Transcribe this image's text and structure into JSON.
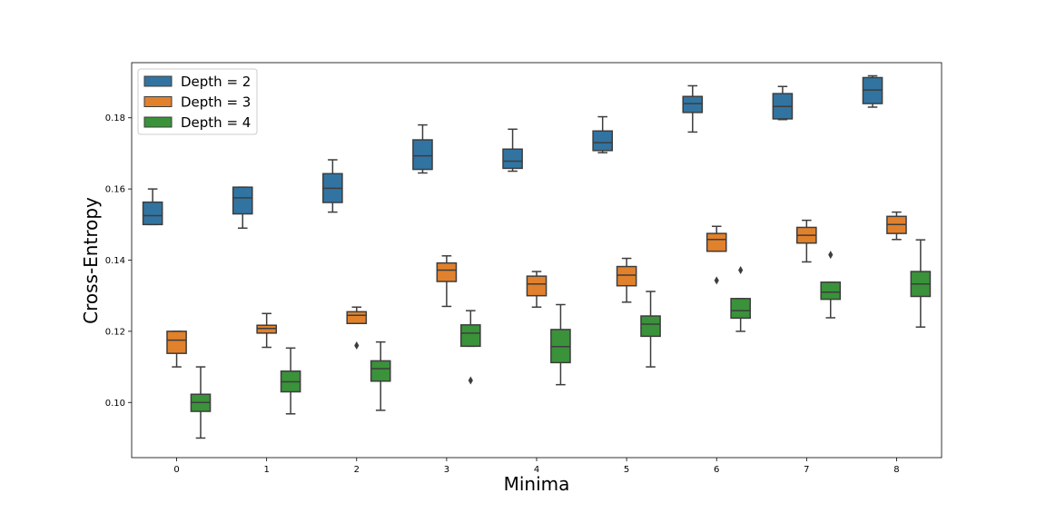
{
  "chart_data": {
    "type": "boxplot",
    "title": "",
    "xlabel": "Minima",
    "ylabel": "Cross-Entropy",
    "categories": [
      "0",
      "1",
      "2",
      "3",
      "4",
      "5",
      "6",
      "7",
      "8"
    ],
    "ylim": [
      0.0845,
      0.1955
    ],
    "yticks": [
      0.1,
      0.12,
      0.14,
      0.16,
      0.18
    ],
    "ytick_labels": [
      "0.10",
      "0.12",
      "0.14",
      "0.16",
      "0.18"
    ],
    "legend_position": "top-left",
    "series": [
      {
        "name": "Depth = 2",
        "color": "#3274a1",
        "boxes": [
          {
            "whislo": 0.15,
            "q1": 0.15,
            "med": 0.1525,
            "q3": 0.1563,
            "whishi": 0.16,
            "fliers": []
          },
          {
            "whislo": 0.149,
            "q1": 0.153,
            "med": 0.1575,
            "q3": 0.1605,
            "whishi": 0.1605,
            "fliers": []
          },
          {
            "whislo": 0.1535,
            "q1": 0.1562,
            "med": 0.1602,
            "q3": 0.1643,
            "whishi": 0.1682,
            "fliers": []
          },
          {
            "whislo": 0.1645,
            "q1": 0.1655,
            "med": 0.1693,
            "q3": 0.1738,
            "whishi": 0.178,
            "fliers": []
          },
          {
            "whislo": 0.165,
            "q1": 0.1658,
            "med": 0.1678,
            "q3": 0.1712,
            "whishi": 0.1768,
            "fliers": []
          },
          {
            "whislo": 0.1702,
            "q1": 0.1708,
            "med": 0.173,
            "q3": 0.1763,
            "whishi": 0.1803,
            "fliers": []
          },
          {
            "whislo": 0.176,
            "q1": 0.1815,
            "med": 0.184,
            "q3": 0.186,
            "whishi": 0.189,
            "fliers": []
          },
          {
            "whislo": 0.1795,
            "q1": 0.1797,
            "med": 0.1832,
            "q3": 0.1868,
            "whishi": 0.1888,
            "fliers": []
          },
          {
            "whislo": 0.183,
            "q1": 0.184,
            "med": 0.1878,
            "q3": 0.1913,
            "whishi": 0.1918,
            "fliers": []
          }
        ]
      },
      {
        "name": "Depth = 3",
        "color": "#e1812c",
        "boxes": [
          {
            "whislo": 0.11,
            "q1": 0.1138,
            "med": 0.1175,
            "q3": 0.12,
            "whishi": 0.12,
            "fliers": []
          },
          {
            "whislo": 0.1155,
            "q1": 0.1195,
            "med": 0.1208,
            "q3": 0.1217,
            "whishi": 0.125,
            "fliers": []
          },
          {
            "whislo": 0.1222,
            "q1": 0.1222,
            "med": 0.1245,
            "q3": 0.1255,
            "whishi": 0.1268,
            "fliers": [
              0.116
            ]
          },
          {
            "whislo": 0.127,
            "q1": 0.134,
            "med": 0.1372,
            "q3": 0.1392,
            "whishi": 0.1412,
            "fliers": []
          },
          {
            "whislo": 0.1268,
            "q1": 0.13,
            "med": 0.1333,
            "q3": 0.1355,
            "whishi": 0.1368,
            "fliers": []
          },
          {
            "whislo": 0.1282,
            "q1": 0.1328,
            "med": 0.1358,
            "q3": 0.1382,
            "whishi": 0.1405,
            "fliers": []
          },
          {
            "whislo": 0.1425,
            "q1": 0.1425,
            "med": 0.1458,
            "q3": 0.1475,
            "whishi": 0.1495,
            "fliers": [
              0.1343
            ]
          },
          {
            "whislo": 0.1395,
            "q1": 0.1448,
            "med": 0.147,
            "q3": 0.1492,
            "whishi": 0.1512,
            "fliers": []
          },
          {
            "whislo": 0.1458,
            "q1": 0.1475,
            "med": 0.15,
            "q3": 0.1523,
            "whishi": 0.1535,
            "fliers": []
          }
        ]
      },
      {
        "name": "Depth = 4",
        "color": "#3a923a",
        "boxes": [
          {
            "whislo": 0.09,
            "q1": 0.0975,
            "med": 0.1,
            "q3": 0.1023,
            "whishi": 0.11,
            "fliers": []
          },
          {
            "whislo": 0.0968,
            "q1": 0.103,
            "med": 0.1058,
            "q3": 0.1088,
            "whishi": 0.1153,
            "fliers": []
          },
          {
            "whislo": 0.0978,
            "q1": 0.106,
            "med": 0.1095,
            "q3": 0.1117,
            "whishi": 0.117,
            "fliers": []
          },
          {
            "whislo": 0.1158,
            "q1": 0.1158,
            "med": 0.1195,
            "q3": 0.1218,
            "whishi": 0.1258,
            "fliers": [
              0.1062
            ]
          },
          {
            "whislo": 0.105,
            "q1": 0.1112,
            "med": 0.1157,
            "q3": 0.1205,
            "whishi": 0.1275,
            "fliers": []
          },
          {
            "whislo": 0.11,
            "q1": 0.1186,
            "med": 0.122,
            "q3": 0.1243,
            "whishi": 0.1312,
            "fliers": []
          },
          {
            "whislo": 0.12,
            "q1": 0.1237,
            "med": 0.1258,
            "q3": 0.1292,
            "whishi": 0.1292,
            "fliers": [
              0.1372
            ]
          },
          {
            "whislo": 0.1238,
            "q1": 0.129,
            "med": 0.131,
            "q3": 0.1338,
            "whishi": 0.1338,
            "fliers": [
              0.1415
            ]
          },
          {
            "whislo": 0.1212,
            "q1": 0.1298,
            "med": 0.1333,
            "q3": 0.1368,
            "whishi": 0.1457,
            "fliers": []
          }
        ]
      }
    ]
  }
}
